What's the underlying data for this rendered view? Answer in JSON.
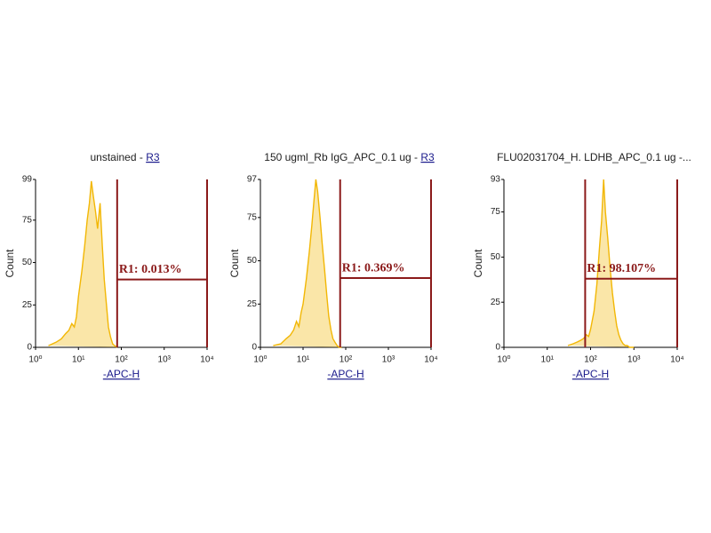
{
  "chart_data": [
    {
      "type": "line",
      "title": "unstained -",
      "title_link": "R3",
      "x_label": "-APC-H",
      "y_label": "Count",
      "x_scale": "log",
      "color": "#f2b705",
      "gate_color": "#8b1a1a",
      "xlim": [
        1,
        10000
      ],
      "ylim": [
        0,
        99
      ],
      "xticks": [
        {
          "value": 1,
          "label": "10⁰"
        },
        {
          "value": 10,
          "label": "10¹"
        },
        {
          "value": 100,
          "label": "10²"
        },
        {
          "value": 1000,
          "label": "10³"
        },
        {
          "value": 10000,
          "label": "10⁴"
        }
      ],
      "yticks": [
        0,
        25,
        50,
        75,
        99
      ],
      "x": [
        2,
        3,
        4,
        5,
        6,
        7,
        8,
        9,
        10,
        12,
        14,
        16,
        18,
        20,
        22,
        25,
        28,
        32,
        36,
        40,
        45,
        50,
        56,
        63,
        70,
        80
      ],
      "values": [
        1,
        3,
        5,
        8,
        10,
        14,
        12,
        18,
        30,
        45,
        60,
        75,
        85,
        98,
        90,
        80,
        70,
        85,
        60,
        40,
        25,
        12,
        6,
        2,
        1,
        0
      ],
      "gate": {
        "x": [
          80,
          10000
        ],
        "y": 40,
        "label": "R1: 0.013%"
      }
    },
    {
      "type": "line",
      "title": "150 ugml_Rb IgG_APC_0.1 ug -",
      "title_link": "R3",
      "x_label": "-APC-H",
      "y_label": "Count",
      "x_scale": "log",
      "color": "#f2b705",
      "gate_color": "#8b1a1a",
      "xlim": [
        1,
        10000
      ],
      "ylim": [
        0,
        97
      ],
      "xticks": [
        {
          "value": 1,
          "label": "10⁰"
        },
        {
          "value": 10,
          "label": "10¹"
        },
        {
          "value": 100,
          "label": "10²"
        },
        {
          "value": 1000,
          "label": "10³"
        },
        {
          "value": 10000,
          "label": "10⁴"
        }
      ],
      "yticks": [
        0,
        25,
        50,
        75,
        97
      ],
      "x": [
        2,
        3,
        4,
        5,
        6,
        7,
        8,
        9,
        10,
        12,
        14,
        16,
        18,
        20,
        22,
        25,
        28,
        32,
        36,
        40,
        45,
        50,
        56,
        63,
        70,
        80
      ],
      "values": [
        1,
        2,
        5,
        7,
        10,
        15,
        12,
        20,
        25,
        40,
        55,
        70,
        85,
        97,
        90,
        75,
        60,
        45,
        30,
        18,
        10,
        5,
        3,
        1,
        0,
        0
      ],
      "gate": {
        "x": [
          74,
          10000
        ],
        "y": 40,
        "label": "R1: 0.369%"
      }
    },
    {
      "type": "line",
      "title": "FLU02031704_H. LDHB_APC_0.1 ug -...",
      "x_label": "-APC-H",
      "y_label": "Count",
      "x_scale": "log",
      "color": "#f2b705",
      "gate_color": "#8b1a1a",
      "xlim": [
        1,
        10000
      ],
      "ylim": [
        0,
        93
      ],
      "xticks": [
        {
          "value": 1,
          "label": "10⁰"
        },
        {
          "value": 10,
          "label": "10¹"
        },
        {
          "value": 100,
          "label": "10²"
        },
        {
          "value": 1000,
          "label": "10³"
        },
        {
          "value": 10000,
          "label": "10⁴"
        }
      ],
      "yticks": [
        0,
        25,
        50,
        75,
        93
      ],
      "x": [
        30,
        40,
        50,
        60,
        70,
        80,
        90,
        100,
        120,
        140,
        160,
        180,
        200,
        220,
        250,
        280,
        320,
        360,
        400,
        450,
        500,
        560,
        630,
        700,
        800,
        1000
      ],
      "values": [
        1,
        2,
        3,
        4,
        5,
        7,
        6,
        10,
        20,
        35,
        55,
        70,
        93,
        75,
        60,
        45,
        30,
        20,
        12,
        7,
        4,
        2,
        1,
        1,
        0,
        0
      ],
      "gate": {
        "x": [
          75,
          10000
        ],
        "y": 38,
        "label": "R1: 98.107%"
      }
    }
  ]
}
